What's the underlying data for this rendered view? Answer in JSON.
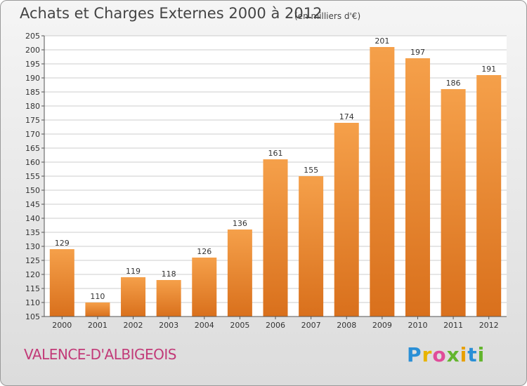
{
  "header": {
    "title": "Achats et Charges Externes 2000 à 2012",
    "unit": "(en milliers d'€)"
  },
  "footer": {
    "commune": "VALENCE-D'ALBIGEOIS",
    "logo_letters": [
      "P",
      "r",
      "o",
      "x",
      "i",
      "t",
      "i"
    ],
    "logo_colors": [
      "#2a8fd6",
      "#e8b400",
      "#e04c9a",
      "#63b52d",
      "#e8a000",
      "#2a8fd6",
      "#63b52d"
    ]
  },
  "chart_data": {
    "type": "bar",
    "title": "Achats et Charges Externes 2000 à 2012",
    "subtitle": "(en milliers d'€)",
    "categories": [
      "2000",
      "2001",
      "2002",
      "2003",
      "2004",
      "2005",
      "2006",
      "2007",
      "2008",
      "2009",
      "2010",
      "2011",
      "2012"
    ],
    "values": [
      129,
      110,
      119,
      118,
      126,
      136,
      161,
      155,
      174,
      201,
      197,
      186,
      191
    ],
    "ylim": [
      105,
      205
    ],
    "yticks": [
      105,
      110,
      115,
      120,
      125,
      130,
      135,
      140,
      145,
      150,
      155,
      160,
      165,
      170,
      175,
      180,
      185,
      190,
      195,
      200,
      205
    ],
    "grid": true,
    "bar_color": "#f5a04a",
    "bar_color_dark": "#d9701c"
  }
}
